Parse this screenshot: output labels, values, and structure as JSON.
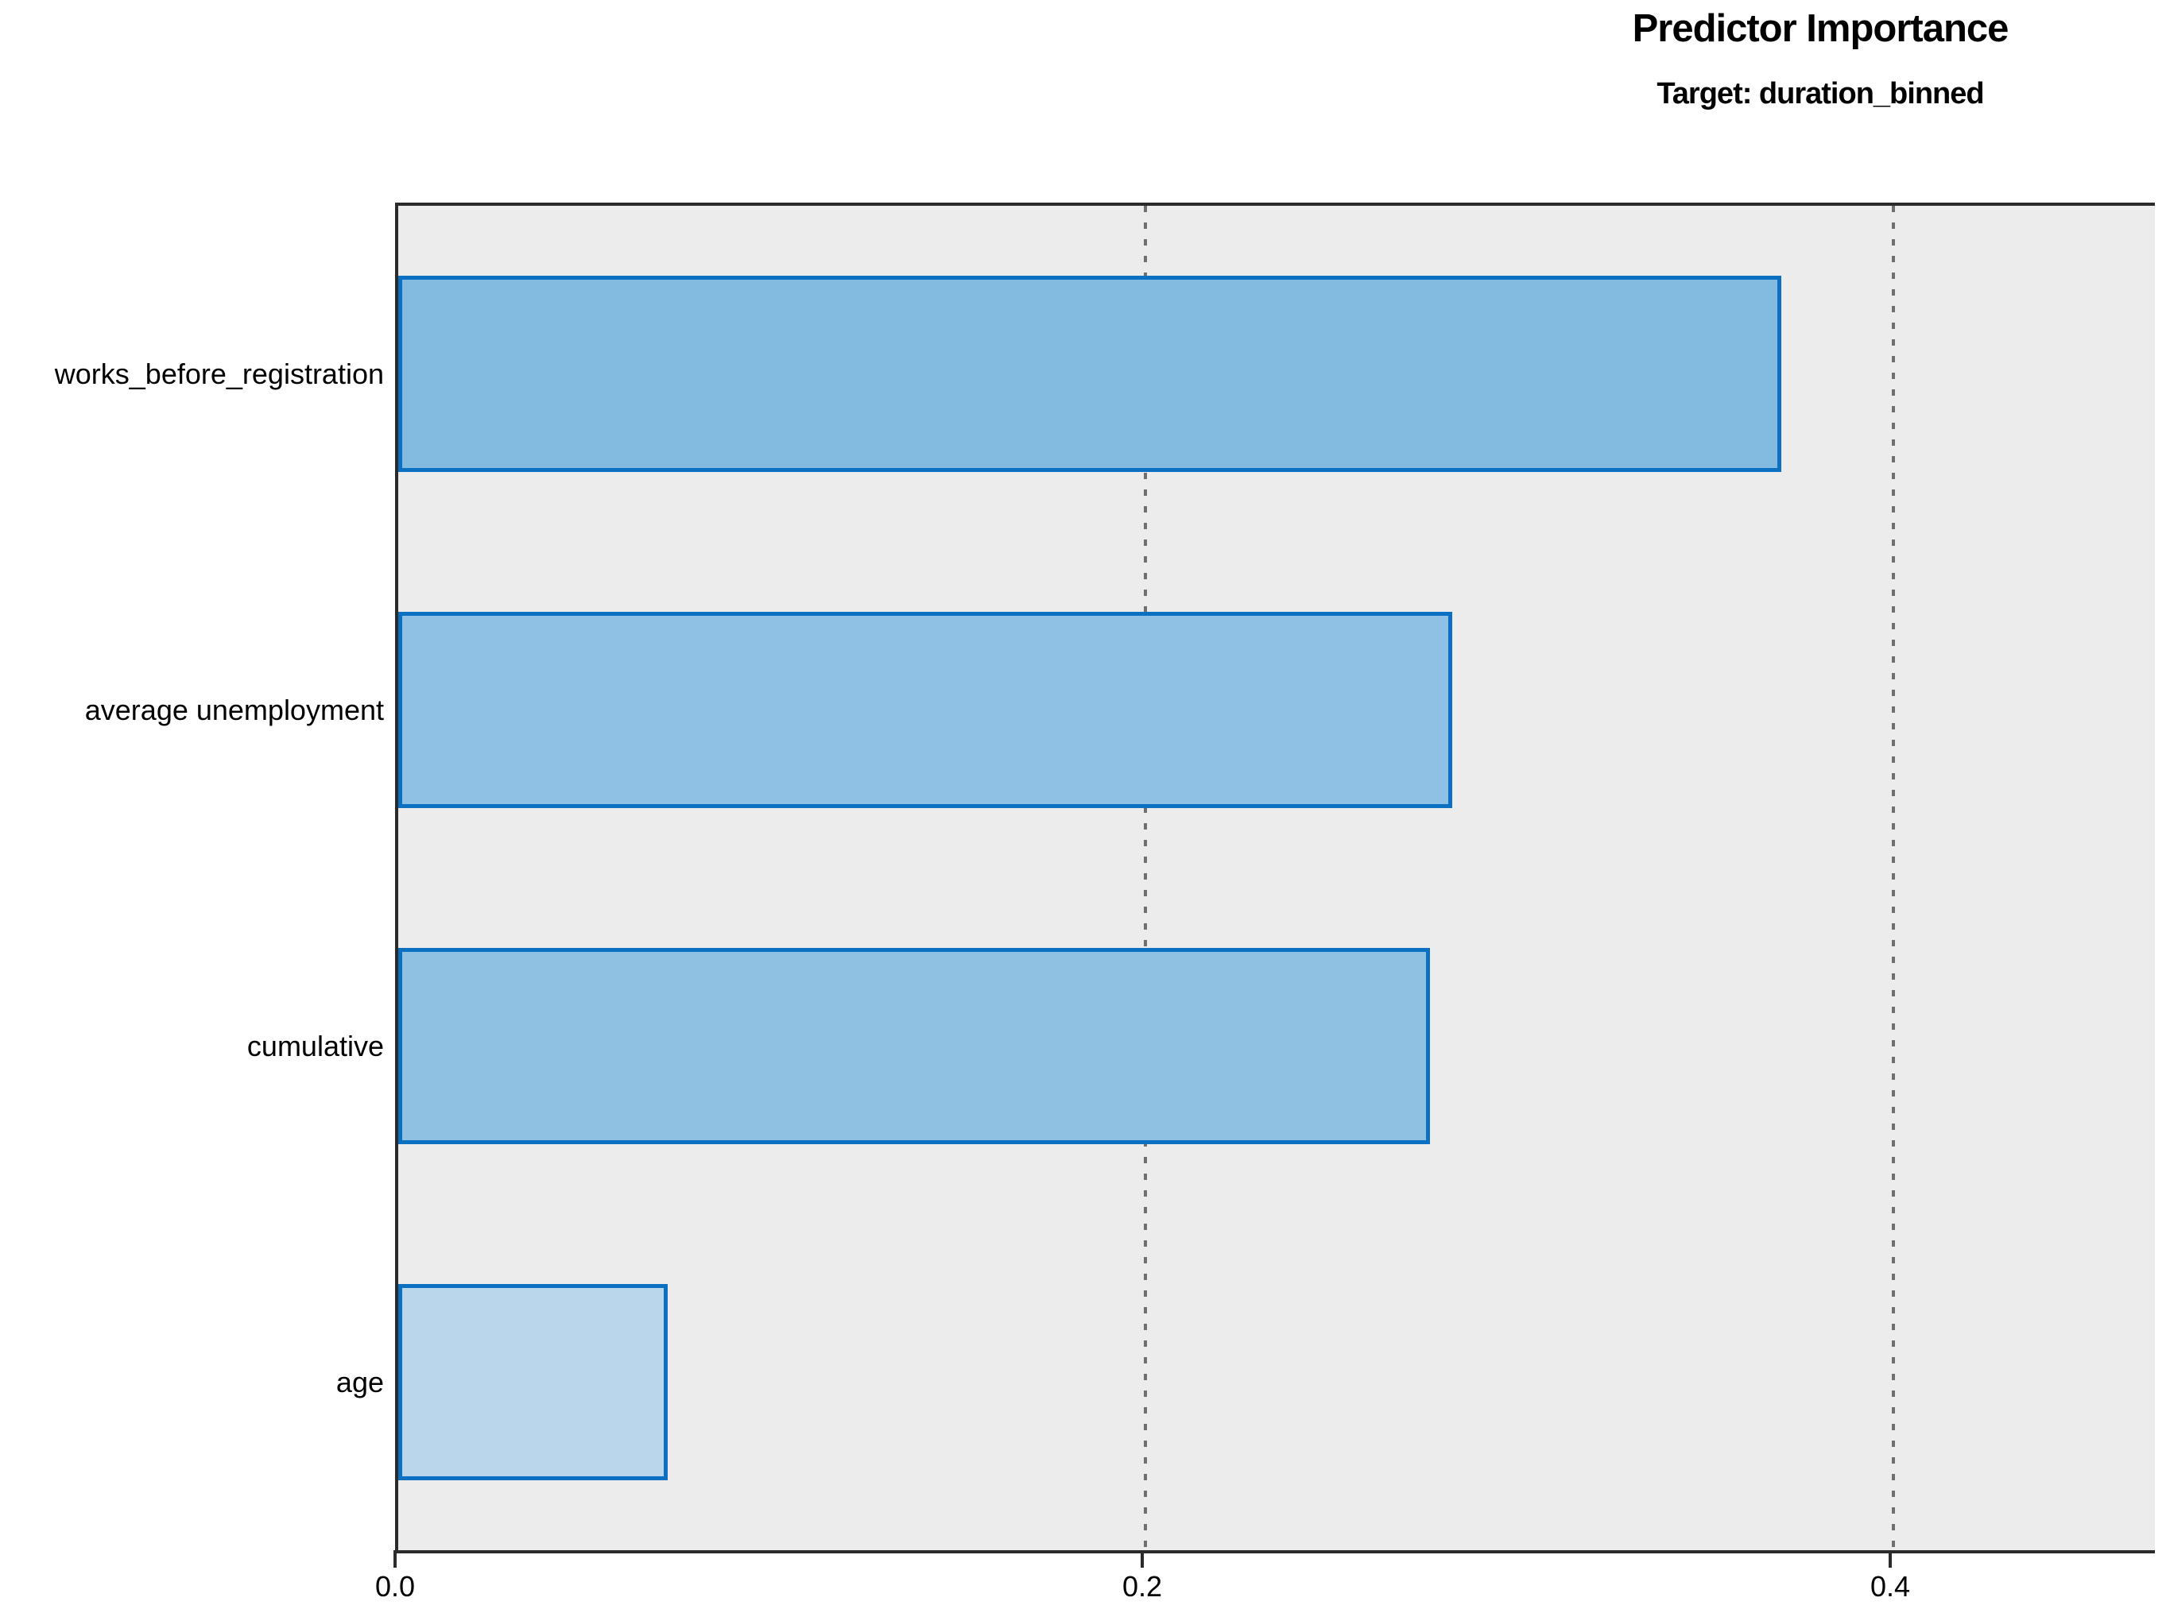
{
  "title": "Predictor Importance",
  "subtitle": "Target: duration_binned",
  "chart_data": {
    "type": "bar",
    "orientation": "horizontal",
    "title": "Predictor Importance",
    "subtitle": "Target: duration_binned",
    "categories": [
      "works_before_registration",
      "average unemployment",
      "cumulative",
      "age"
    ],
    "values": [
      0.37,
      0.282,
      0.276,
      0.072
    ],
    "xlabel": "",
    "ylabel": "",
    "xlim": [
      0,
      0.47
    ],
    "xticks": [
      0.0,
      0.2,
      0.4
    ],
    "xtick_labels": [
      "0.0",
      "0.2",
      "0.4"
    ],
    "gridline_values": [
      0.2,
      0.4
    ],
    "gridline_style": "dashed",
    "gridline_color": "#6F6F6F",
    "bar_fill_colors": [
      "#83BAE0",
      "#8EC1E3",
      "#8FC1E3",
      "#BAD6EB"
    ],
    "bar_border_color": "#0B6FC2",
    "plot_background": "#ECECEC",
    "axis_color": "#2B2B2B",
    "text_color": "#000000",
    "legend": "none",
    "grid": "vertical-dashed"
  }
}
